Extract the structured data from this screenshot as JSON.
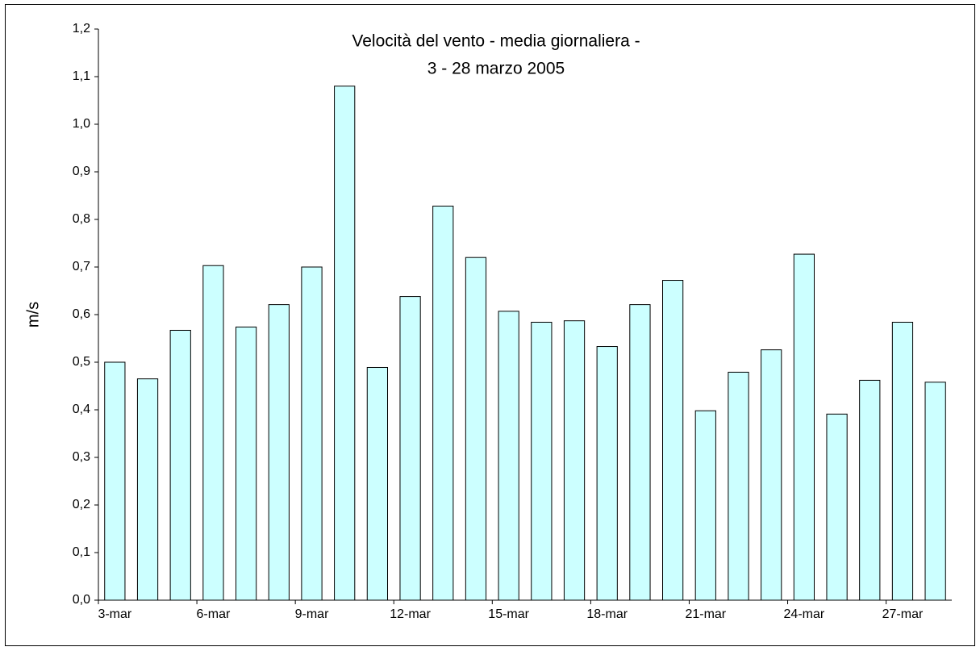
{
  "chart_data": {
    "type": "bar",
    "title": "Velocità del vento - media giornaliera -",
    "subtitle": "3 - 28 marzo 2005",
    "y_label": "m/s",
    "categories": [
      "3-mar",
      null,
      null,
      "6-mar",
      null,
      null,
      "9-mar",
      null,
      null,
      "12-mar",
      null,
      null,
      "15-mar",
      null,
      null,
      "18-mar",
      null,
      null,
      "21-mar",
      null,
      null,
      "24-mar",
      null,
      null,
      "27-mar",
      null
    ],
    "values": [
      0.5,
      0.465,
      0.567,
      0.703,
      0.574,
      0.621,
      0.7,
      1.08,
      0.489,
      0.638,
      0.828,
      0.72,
      0.607,
      0.584,
      0.587,
      0.533,
      0.621,
      0.672,
      0.398,
      0.479,
      0.526,
      0.727,
      0.391,
      0.462,
      0.584,
      0.458
    ],
    "color": "#ccffff",
    "ylim": [
      0,
      1.2
    ],
    "yticks": [
      {
        "value": 0,
        "label": "0,0"
      },
      {
        "value": 0.1,
        "label": "0,1"
      },
      {
        "value": 0.2,
        "label": "0,2"
      },
      {
        "value": 0.3,
        "label": "0,3"
      },
      {
        "value": 0.4,
        "label": "0,4"
      },
      {
        "value": 0.5,
        "label": "0,5"
      },
      {
        "value": 0.6,
        "label": "0,6"
      },
      {
        "value": 0.7,
        "label": "0,7"
      },
      {
        "value": 0.8,
        "label": "0,8"
      },
      {
        "value": 0.9,
        "label": "0,9"
      },
      {
        "value": 1.0,
        "label": "1,0"
      },
      {
        "value": 1.1,
        "label": "1,1"
      },
      {
        "value": 1.2,
        "label": "1,2"
      }
    ],
    "grid": false
  }
}
